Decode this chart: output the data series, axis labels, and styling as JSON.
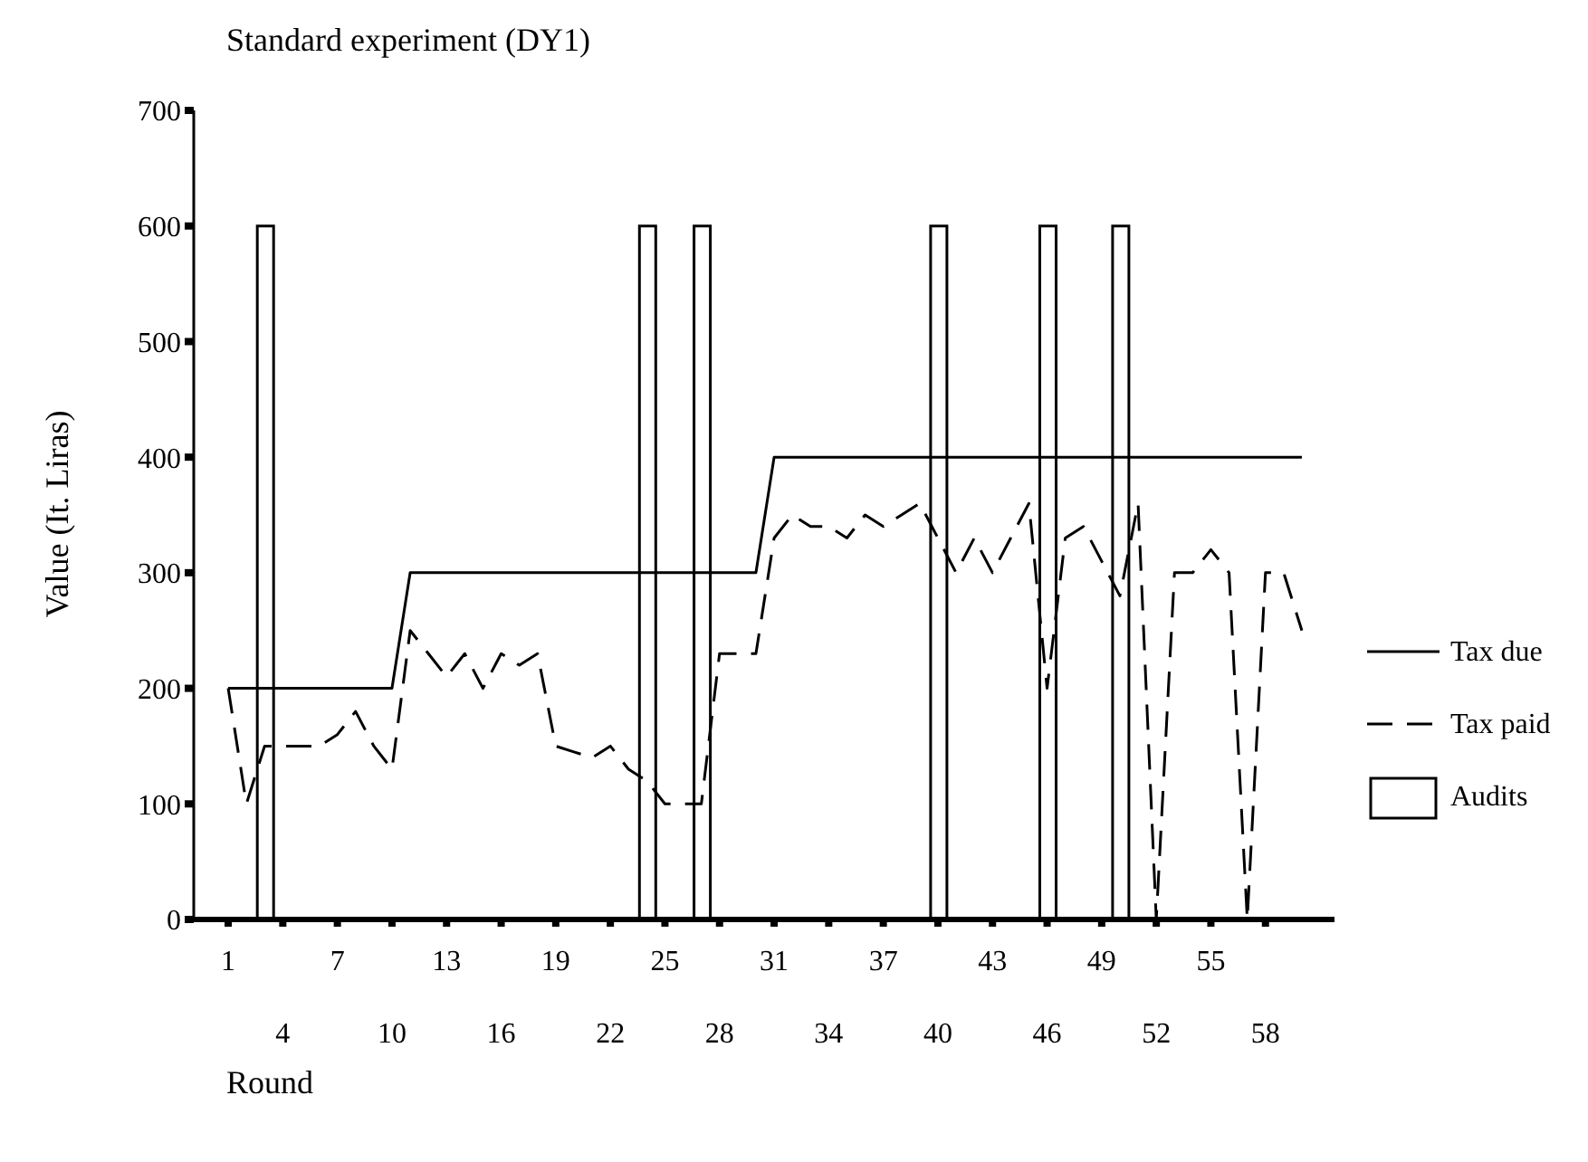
{
  "chart_data": {
    "type": "line",
    "title": "Standard experiment (DY1)",
    "xlabel": "Round",
    "ylabel": "Value (It. Liras)",
    "categories": [
      "1",
      null,
      null,
      "4",
      null,
      null,
      "7",
      null,
      null,
      "10",
      null,
      null,
      "13",
      null,
      null,
      "16",
      null,
      null,
      "19",
      null,
      null,
      "22",
      null,
      null,
      "25",
      null,
      null,
      "28",
      null,
      null,
      "31",
      null,
      null,
      "34",
      null,
      null,
      "37",
      null,
      null,
      "40",
      null,
      null,
      "43",
      null,
      null,
      "46",
      null,
      null,
      "49",
      null,
      null,
      "52",
      null,
      null,
      "55",
      null,
      null,
      "58",
      null,
      null
    ],
    "series": [
      {
        "name": "Tax due",
        "line_style": "solid",
        "color": "#000000",
        "values": [
          200,
          200,
          200,
          200,
          200,
          200,
          200,
          200,
          200,
          200,
          300,
          300,
          300,
          300,
          300,
          300,
          300,
          300,
          300,
          300,
          300,
          300,
          300,
          300,
          300,
          300,
          300,
          300,
          300,
          300,
          400,
          400,
          400,
          400,
          400,
          400,
          400,
          400,
          400,
          400,
          400,
          400,
          400,
          400,
          400,
          400,
          400,
          400,
          400,
          400,
          400,
          400,
          400,
          400,
          400,
          400,
          400,
          400,
          400,
          400
        ]
      },
      {
        "name": "Tax paid",
        "line_style": "dashed",
        "color": "#000000",
        "values": [
          200,
          100,
          150,
          150,
          150,
          150,
          160,
          180,
          150,
          130,
          250,
          230,
          210,
          230,
          200,
          230,
          220,
          230,
          150,
          145,
          140,
          150,
          130,
          120,
          100,
          100,
          100,
          230,
          230,
          230,
          330,
          350,
          340,
          340,
          330,
          350,
          340,
          350,
          360,
          330,
          300,
          330,
          300,
          330,
          360,
          200,
          330,
          340,
          310,
          280,
          360,
          0,
          300,
          300,
          320,
          300,
          0,
          300,
          300,
          250
        ]
      },
      {
        "name": "Audits",
        "type": "bar",
        "color": "#000000",
        "values": [
          null,
          null,
          600,
          null,
          null,
          null,
          null,
          null,
          null,
          null,
          null,
          null,
          null,
          null,
          null,
          null,
          null,
          null,
          null,
          null,
          null,
          null,
          null,
          600,
          null,
          null,
          600,
          null,
          null,
          null,
          null,
          null,
          null,
          null,
          null,
          null,
          null,
          null,
          null,
          600,
          null,
          null,
          null,
          null,
          null,
          600,
          null,
          null,
          null,
          600,
          null,
          null,
          null,
          null,
          null,
          null,
          null,
          null,
          null,
          null
        ]
      }
    ],
    "ylim": [
      0,
      700
    ],
    "yticks": [
      0,
      100,
      200,
      300,
      400,
      500,
      600,
      700
    ],
    "grid": false,
    "legend": "right",
    "marker": "none"
  }
}
